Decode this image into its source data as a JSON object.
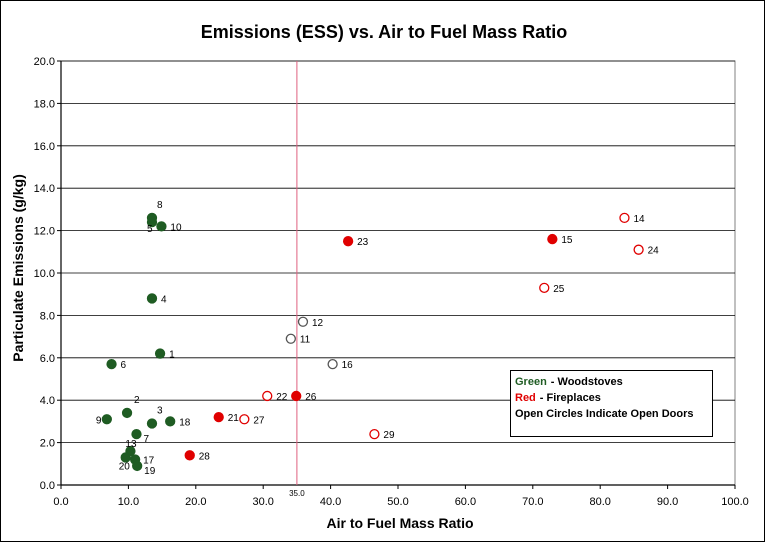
{
  "chart_data": {
    "type": "scatter",
    "title": "Emissions (ESS) vs. Air to Fuel Mass Ratio",
    "xlabel": "Air to Fuel Mass Ratio",
    "ylabel": "Particulate Emissions (g/kg)",
    "xlim": [
      0,
      100
    ],
    "ylim": [
      0,
      20
    ],
    "x_ticks": [
      "0.0",
      "10.0",
      "20.0",
      "30.0",
      "40.0",
      "50.0",
      "60.0",
      "70.0",
      "80.0",
      "90.0",
      "100.0"
    ],
    "y_ticks": [
      "0.0",
      "2.0",
      "4.0",
      "6.0",
      "8.0",
      "10.0",
      "12.0",
      "14.0",
      "16.0",
      "18.0",
      "20.0"
    ],
    "grid": "horizontal",
    "reference_line": {
      "x": 35.0,
      "label": "35.0",
      "color": "#e06080"
    },
    "colors": {
      "woodstove": "#1f5c23",
      "fireplace": "#e00000",
      "open_gray": "#555555"
    },
    "points": [
      {
        "id": "1",
        "x": 14.7,
        "y": 6.2,
        "group": "woodstove",
        "open": false
      },
      {
        "id": "2",
        "x": 9.8,
        "y": 3.4,
        "group": "woodstove",
        "open": false
      },
      {
        "id": "3",
        "x": 13.5,
        "y": 2.9,
        "group": "woodstove",
        "open": false
      },
      {
        "id": "4",
        "x": 13.5,
        "y": 8.8,
        "group": "woodstove",
        "open": false
      },
      {
        "id": "5",
        "x": 13.5,
        "y": 12.4,
        "group": "woodstove",
        "open": false
      },
      {
        "id": "6",
        "x": 7.5,
        "y": 5.7,
        "group": "woodstove",
        "open": false
      },
      {
        "id": "7",
        "x": 11.2,
        "y": 2.4,
        "group": "woodstove",
        "open": false
      },
      {
        "id": "8",
        "x": 13.5,
        "y": 12.6,
        "group": "woodstove",
        "open": false
      },
      {
        "id": "9",
        "x": 6.8,
        "y": 3.1,
        "group": "woodstove",
        "open": false
      },
      {
        "id": "10",
        "x": 14.9,
        "y": 12.2,
        "group": "woodstove",
        "open": false
      },
      {
        "id": "13",
        "x": 10.3,
        "y": 1.6,
        "group": "woodstove",
        "open": false
      },
      {
        "id": "17",
        "x": 11.0,
        "y": 1.2,
        "group": "woodstove",
        "open": false
      },
      {
        "id": "18",
        "x": 16.2,
        "y": 3.0,
        "group": "woodstove",
        "open": false
      },
      {
        "id": "19",
        "x": 11.3,
        "y": 0.9,
        "group": "woodstove",
        "open": false
      },
      {
        "id": "20",
        "x": 9.6,
        "y": 1.3,
        "group": "woodstove",
        "open": false
      },
      {
        "id": "11",
        "x": 34.1,
        "y": 6.9,
        "group": "other",
        "open": true
      },
      {
        "id": "12",
        "x": 35.9,
        "y": 7.7,
        "group": "other",
        "open": true
      },
      {
        "id": "16",
        "x": 40.3,
        "y": 5.7,
        "group": "other",
        "open": true
      },
      {
        "id": "14",
        "x": 83.6,
        "y": 12.6,
        "group": "fireplace",
        "open": true
      },
      {
        "id": "15",
        "x": 72.9,
        "y": 11.6,
        "group": "fireplace",
        "open": false
      },
      {
        "id": "21",
        "x": 23.4,
        "y": 3.2,
        "group": "fireplace",
        "open": false
      },
      {
        "id": "22",
        "x": 30.6,
        "y": 4.2,
        "group": "fireplace",
        "open": true
      },
      {
        "id": "23",
        "x": 42.6,
        "y": 11.5,
        "group": "fireplace",
        "open": false
      },
      {
        "id": "24",
        "x": 85.7,
        "y": 11.1,
        "group": "fireplace",
        "open": true
      },
      {
        "id": "25",
        "x": 71.7,
        "y": 9.3,
        "group": "fireplace",
        "open": true
      },
      {
        "id": "26",
        "x": 34.9,
        "y": 4.2,
        "group": "fireplace",
        "open": false
      },
      {
        "id": "27",
        "x": 27.2,
        "y": 3.1,
        "group": "fireplace",
        "open": true
      },
      {
        "id": "28",
        "x": 19.1,
        "y": 1.4,
        "group": "fireplace",
        "open": false
      },
      {
        "id": "29",
        "x": 46.5,
        "y": 2.4,
        "group": "fireplace",
        "open": true
      }
    ],
    "legend": {
      "placement": "bottom-right",
      "entries": [
        {
          "key": "Green",
          "text": "- Woodstoves"
        },
        {
          "key": "Red",
          "text": "- Fireplaces"
        },
        {
          "key": "",
          "text": "Open Circles Indicate Open Doors"
        }
      ]
    }
  }
}
